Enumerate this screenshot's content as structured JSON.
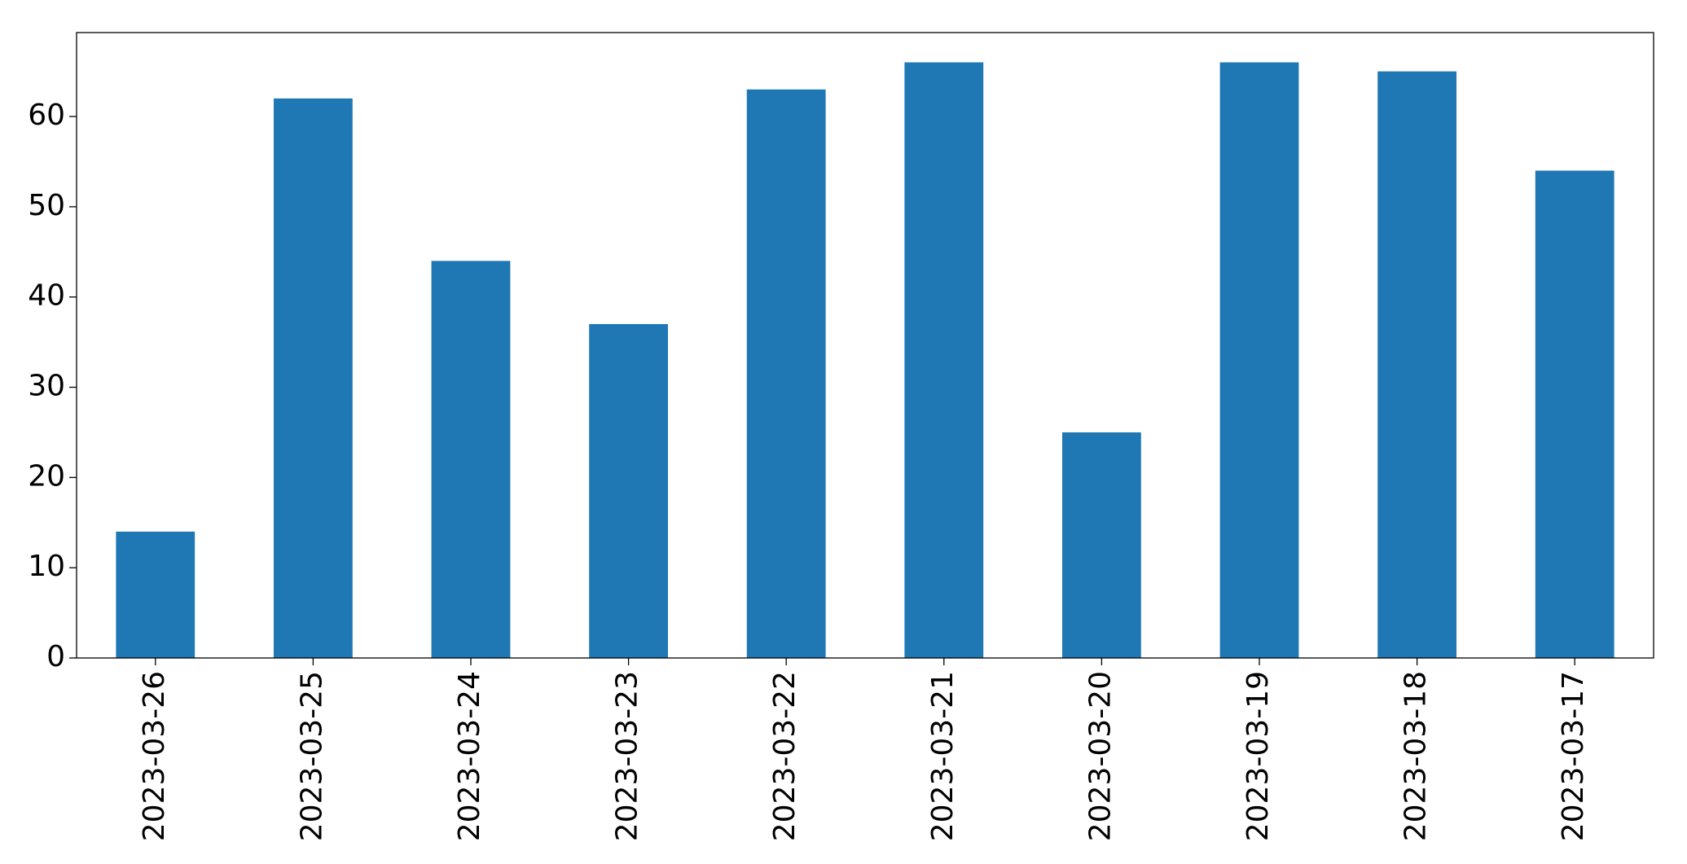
{
  "chart_data": {
    "type": "bar",
    "categories": [
      "2023-03-26",
      "2023-03-25",
      "2023-03-24",
      "2023-03-23",
      "2023-03-22",
      "2023-03-21",
      "2023-03-20",
      "2023-03-19",
      "2023-03-18",
      "2023-03-17"
    ],
    "values": [
      14,
      62,
      44,
      37,
      63,
      66,
      25,
      66,
      65,
      54
    ],
    "color": "#1f77b4",
    "ylim": [
      0,
      69.3
    ],
    "yticks": [
      0,
      10,
      20,
      30,
      40,
      50,
      60
    ],
    "grid": false
  }
}
